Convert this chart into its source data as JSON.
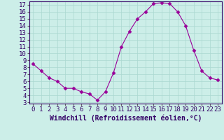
{
  "x": [
    0,
    1,
    2,
    3,
    4,
    5,
    6,
    7,
    8,
    9,
    10,
    11,
    12,
    13,
    14,
    15,
    16,
    17,
    18,
    19,
    20,
    21,
    22,
    23
  ],
  "y": [
    8.5,
    7.5,
    6.5,
    6.0,
    5.0,
    5.0,
    4.5,
    4.2,
    3.3,
    4.5,
    7.2,
    11.0,
    13.2,
    15.0,
    16.0,
    17.2,
    17.3,
    17.2,
    16.0,
    14.0,
    10.5,
    7.5,
    6.5,
    6.2
  ],
  "line_color": "#990099",
  "marker": "D",
  "marker_size": 2.5,
  "bg_color": "#cceee8",
  "grid_color": "#aad8d0",
  "xlabel": "Windchill (Refroidissement éolien,°C)",
  "xlabel_fontsize": 7,
  "tick_fontsize": 6.5,
  "xlim": [
    -0.5,
    23.5
  ],
  "ylim": [
    2.8,
    17.5
  ],
  "yticks": [
    3,
    4,
    5,
    6,
    7,
    8,
    9,
    10,
    11,
    12,
    13,
    14,
    15,
    16,
    17
  ],
  "xticks": [
    0,
    1,
    2,
    3,
    4,
    5,
    6,
    7,
    8,
    9,
    10,
    11,
    12,
    13,
    14,
    15,
    16,
    17,
    18,
    19,
    20,
    21,
    22,
    23
  ],
  "spine_color": "#666666",
  "axis_color": "#330066"
}
